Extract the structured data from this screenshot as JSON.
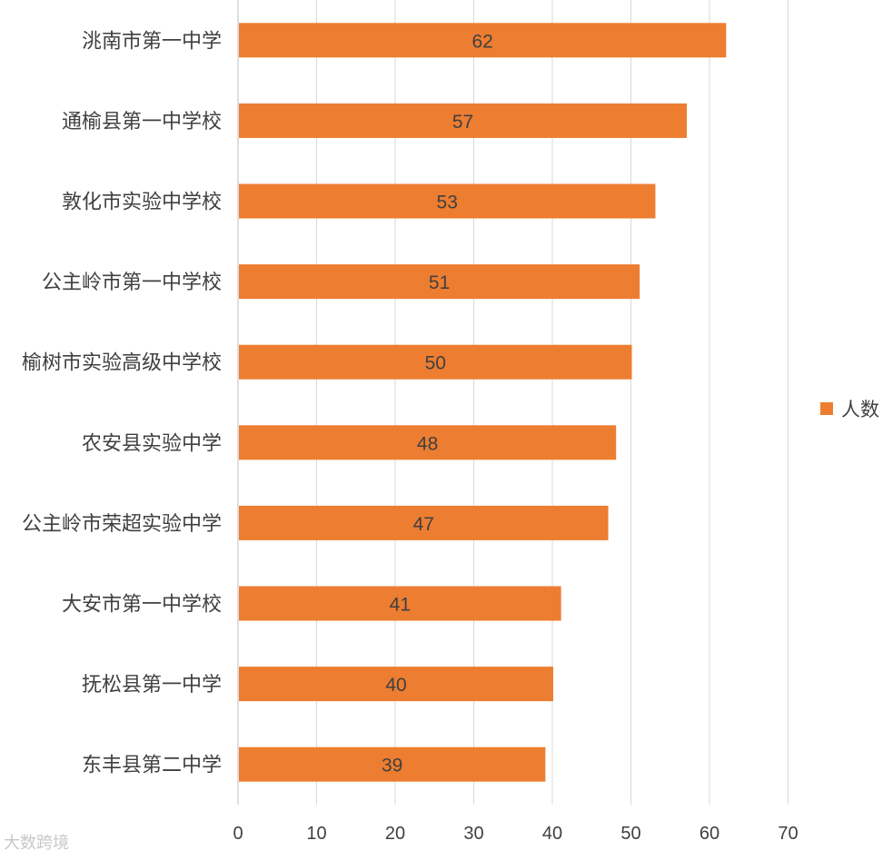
{
  "chart_data": {
    "type": "bar",
    "orientation": "horizontal",
    "categories": [
      "洮南市第一中学",
      "通榆县第一中学校",
      "敦化市实验中学校",
      "公主岭市第一中学校",
      "榆树市实验高级中学校",
      "农安县实验中学",
      "公主岭市荣超实验中学",
      "大安市第一中学校",
      "抚松县第一中学",
      "东丰县第二中学"
    ],
    "series": [
      {
        "name": "人数",
        "values": [
          62,
          57,
          53,
          51,
          50,
          48,
          47,
          41,
          40,
          39
        ],
        "color": "#ED7D31"
      }
    ],
    "xlim": [
      0,
      70
    ],
    "xticks": [
      0,
      10,
      20,
      30,
      40,
      50,
      60,
      70
    ],
    "grid": "vertical",
    "legend_position": "right",
    "data_labels": "center"
  },
  "watermark": {
    "text": "大数跨境"
  }
}
